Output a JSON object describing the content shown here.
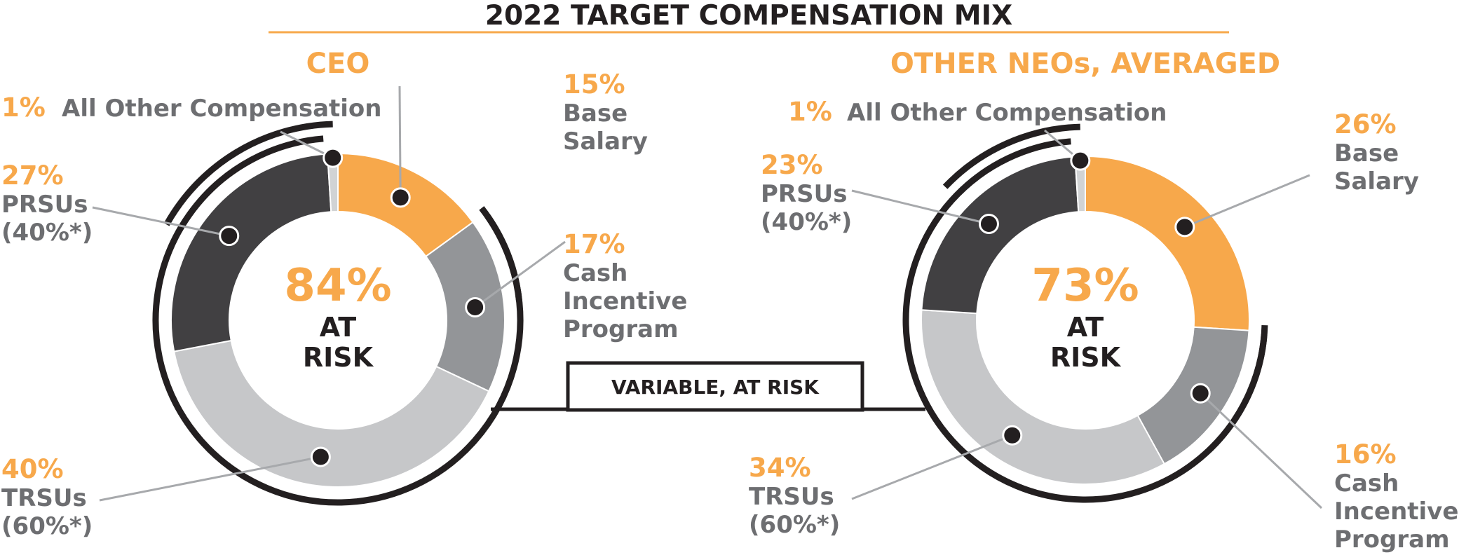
{
  "chart_data": {
    "type": "pie",
    "title": "2022 TARGET COMPENSATION MIX",
    "variable_label": "VARIABLE, AT RISK",
    "colors": {
      "accent": "#F7A84B",
      "label": "#6d6e71",
      "dark": "#231f20",
      "base_salary": "#F7A84B",
      "cash_incentive": "#939598",
      "trsu": "#c6c7c9",
      "prsu": "#414042",
      "all_other": "#d1d3d4"
    },
    "charts": [
      {
        "heading": "CEO",
        "at_risk_value": "84%",
        "at_risk_label_1": "AT",
        "at_risk_label_2": "RISK",
        "segments": [
          {
            "name": "Base Salary",
            "value": 15,
            "display": "15%",
            "label_lines": [
              "Base",
              "Salary"
            ]
          },
          {
            "name": "Cash Incentive Program",
            "value": 17,
            "display": "17%",
            "label_lines": [
              "Cash",
              "Incentive",
              "Program"
            ]
          },
          {
            "name": "TRSUs",
            "value": 40,
            "display": "40%",
            "label_lines": [
              "TRSUs",
              "(60%*)"
            ]
          },
          {
            "name": "PRSUs",
            "value": 27,
            "display": "27%",
            "label_lines": [
              "PRSUs",
              "(40%*)"
            ]
          },
          {
            "name": "All Other Compensation",
            "value": 1,
            "display": "1%",
            "label_lines": [
              "All Other Compensation"
            ]
          }
        ]
      },
      {
        "heading": "OTHER NEOs, AVERAGED",
        "at_risk_value": "73%",
        "at_risk_label_1": "AT",
        "at_risk_label_2": "RISK",
        "segments": [
          {
            "name": "Base Salary",
            "value": 26,
            "display": "26%",
            "label_lines": [
              "Base",
              "Salary"
            ]
          },
          {
            "name": "Cash Incentive Program",
            "value": 16,
            "display": "16%",
            "label_lines": [
              "Cash",
              "Incentive",
              "Program"
            ]
          },
          {
            "name": "TRSUs",
            "value": 34,
            "display": "34%",
            "label_lines": [
              "TRSUs",
              "(60%*)"
            ]
          },
          {
            "name": "PRSUs",
            "value": 23,
            "display": "23%",
            "label_lines": [
              "PRSUs",
              "(40%*)"
            ]
          },
          {
            "name": "All Other Compensation",
            "value": 1,
            "display": "1%",
            "label_lines": [
              "All Other Compensation"
            ]
          }
        ]
      }
    ]
  }
}
